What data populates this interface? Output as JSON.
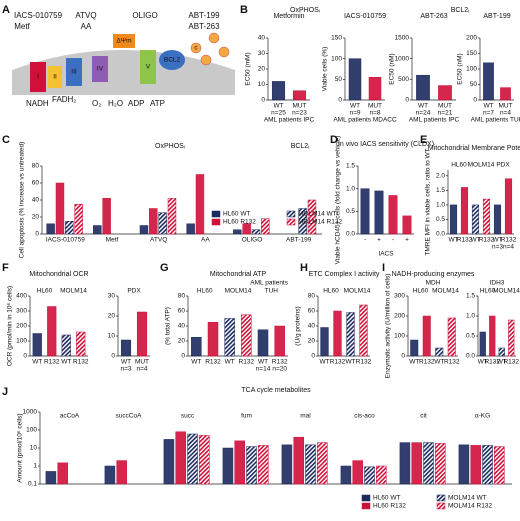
{
  "panels": [
    "A",
    "B",
    "C",
    "D",
    "E",
    "F",
    "G",
    "H",
    "I",
    "J"
  ],
  "headers": [
    "OxPHOSᵢ",
    "BCL2ᵢ",
    "OxPHOSᵢ",
    "BCL2ᵢ"
  ],
  "diagram": {
    "drugs": [
      "IACS-010759",
      "Metf",
      "ATVQ",
      "AA",
      "OLIGO",
      "ABT-199",
      "ABT-263"
    ],
    "complexes": [
      "I",
      "II",
      "III",
      "IV",
      "ΔΨm",
      "V",
      "BCL2"
    ],
    "cyto": "c",
    "substrates": [
      "NADH",
      "FADH₂",
      "O₂",
      "H₂O",
      "ADP",
      "ATP"
    ]
  },
  "chart_data": [
    {
      "type": "bar",
      "title": "Metformin",
      "ylabel": "EC50 (mM)",
      "ylim": [
        0,
        40
      ],
      "yticks": [
        0,
        10,
        20,
        30,
        40
      ],
      "categories": [
        "WT",
        "MUT"
      ],
      "sublabels": [
        "n=25",
        "n=23"
      ],
      "xlabel": "AML patients IPC",
      "values": [
        12,
        6
      ],
      "colors": [
        "#1c2a5e",
        "#d0103a"
      ],
      "hatch": [
        false,
        false
      ]
    },
    {
      "type": "bar",
      "title": "IACS-010759",
      "ylabel": "Viable cells (%)",
      "ylim": [
        0,
        150
      ],
      "yticks": [
        0,
        50,
        100,
        150
      ],
      "categories": [
        "WT",
        "MUT"
      ],
      "sublabels": [
        "n=9",
        "n=8"
      ],
      "xlabel": "AML patients MDACC",
      "values": [
        100,
        55
      ],
      "colors": [
        "#1c2a5e",
        "#d0103a"
      ],
      "hatch": [
        false,
        false
      ]
    },
    {
      "type": "bar",
      "title": "ABT-263",
      "ylabel": "EC50 (nM)",
      "ylim": [
        0,
        1500
      ],
      "yticks": [
        0,
        500,
        1000,
        1500
      ],
      "categories": [
        "WT",
        "MUT"
      ],
      "sublabels": [
        "n=24",
        "n=21"
      ],
      "xlabel": "AML patients IPC",
      "values": [
        600,
        350
      ],
      "colors": [
        "#1c2a5e",
        "#d0103a"
      ],
      "hatch": [
        false,
        false
      ]
    },
    {
      "type": "bar",
      "title": "ABT-199",
      "ylabel": "EC50 (nM)",
      "ylim": [
        0,
        200
      ],
      "yticks": [
        0,
        50,
        100,
        150,
        200
      ],
      "categories": [
        "WT",
        "MUT"
      ],
      "sublabels": [
        "n=7",
        "n=4"
      ],
      "xlabel": "AML patients TUH",
      "values": [
        120,
        40
      ],
      "colors": [
        "#1c2a5e",
        "#d0103a"
      ],
      "hatch": [
        false,
        false
      ]
    },
    {
      "type": "bar",
      "ylabel": "Cell apoptosis (% increase vs untreated)",
      "ylim": [
        0,
        80
      ],
      "yticks": [
        0,
        20,
        40,
        60,
        80
      ],
      "categories": [
        "IACS-010759",
        "Metf",
        "ATVQ",
        "AA",
        "OLIGO",
        "ABT-199"
      ],
      "legend": "lower right",
      "series": [
        {
          "name": "HL60 WT",
          "color": "#1c2a5e",
          "hatch": false,
          "values": [
            12,
            10,
            10,
            12,
            5,
            null
          ]
        },
        {
          "name": "HL60 R132",
          "color": "#d0103a",
          "hatch": false,
          "values": [
            60,
            42,
            30,
            70,
            12,
            null
          ]
        },
        {
          "name": "MOLM14 WT",
          "color": "#1c2a5e",
          "hatch": true,
          "values": [
            15,
            null,
            25,
            null,
            5,
            30
          ]
        },
        {
          "name": "MOLM14 R132",
          "color": "#d0103a",
          "hatch": true,
          "values": [
            35,
            null,
            42,
            null,
            18,
            40
          ]
        }
      ]
    },
    {
      "type": "bar",
      "title": "In vivo IACS sensitivity (CLDX)",
      "ylabel": "Viable hCD45+ cells (fold change vs vehicle)",
      "ylim": [
        0,
        1.5
      ],
      "yticks": [
        {
          "value": 0,
          "label": "0.0"
        },
        0.5,
        {
          "value": 1,
          "label": "1.0"
        },
        1.5
      ],
      "categories": [
        "-",
        "+",
        "-",
        "+"
      ],
      "xlabel": "IACS",
      "values": [
        1.0,
        0.95,
        0.85,
        0.4
      ],
      "colors": [
        "#1c2a5e",
        "#1c2a5e",
        "#d0103a",
        "#d0103a"
      ],
      "hatch": [
        false,
        false,
        false,
        false
      ]
    },
    {
      "type": "bar",
      "title": "Mitochondrial Membrane Potential",
      "ylabel": "TMRE MFI in viable cells, ratio to WT",
      "ylim": [
        0,
        2.2
      ],
      "yticks": [
        {
          "value": 0,
          "label": "0.0"
        },
        0.5,
        {
          "value": 1,
          "label": "1.0"
        },
        1.5,
        {
          "value": 2,
          "label": "2.0"
        }
      ],
      "groups": [
        "HL60",
        "MOLM14",
        "PDX"
      ],
      "categories": [
        "WT",
        "R132",
        "WT",
        "R132",
        "WT",
        "R132"
      ],
      "sublabels": [
        null,
        null,
        null,
        null,
        "n=3",
        "n=4"
      ],
      "values": [
        1.0,
        1.6,
        1.0,
        1.2,
        1.0,
        1.9
      ],
      "colors": [
        "#1c2a5e",
        "#d0103a",
        "#1c2a5e",
        "#d0103a",
        "#1c2a5e",
        "#d0103a"
      ],
      "hatch": [
        false,
        false,
        true,
        true,
        false,
        false
      ]
    },
    {
      "type": "bar",
      "title": "Mitochondrial OCR",
      "ylabel": "OCR (pmol/min in 10⁶ cells)",
      "ylim": [
        0,
        400
      ],
      "yticks": [
        0,
        100,
        200,
        300,
        400
      ],
      "groups": [
        "HL60",
        "MOLM14"
      ],
      "categories": [
        "WT",
        "R132",
        "WT",
        "R132"
      ],
      "values": [
        150,
        330,
        140,
        160
      ],
      "colors": [
        "#1c2a5e",
        "#d0103a",
        "#1c2a5e",
        "#d0103a"
      ],
      "hatch": [
        false,
        false,
        true,
        true
      ]
    },
    {
      "type": "bar",
      "ylim": [
        0,
        30
      ],
      "yticks": [
        0,
        10,
        20,
        30
      ],
      "groups": [
        "PDX"
      ],
      "categories": [
        "WT",
        "MUT"
      ],
      "sublabels": [
        "n=3",
        "n=4"
      ],
      "values": [
        8,
        22
      ],
      "colors": [
        "#1c2a5e",
        "#d0103a"
      ],
      "hatch": [
        false,
        false
      ]
    },
    {
      "type": "bar",
      "title": "Mitochondrial ATP",
      "note": "AML patients",
      "ylabel": "(% total ATP)",
      "ylim": [
        0,
        80
      ],
      "yticks": [
        0,
        20,
        40,
        60,
        80
      ],
      "groups": [
        "HL60",
        "MOLM14",
        "TUH"
      ],
      "categories": [
        "WT",
        "R132",
        "WT",
        "R132",
        "WT",
        "R132"
      ],
      "sublabels": [
        null,
        null,
        null,
        null,
        "n=14",
        "n=20"
      ],
      "values": [
        25,
        45,
        50,
        55,
        35,
        40
      ],
      "colors": [
        "#1c2a5e",
        "#d0103a",
        "#1c2a5e",
        "#d0103a",
        "#1c2a5e",
        "#d0103a"
      ],
      "hatch": [
        false,
        false,
        true,
        true,
        false,
        false
      ]
    },
    {
      "type": "bar",
      "title": "ETC Complex I activity",
      "ylabel": "(U/g proteins)",
      "ylim": [
        0,
        80
      ],
      "yticks": [
        0,
        20,
        40,
        60,
        80
      ],
      "groups": [
        "HL60",
        "MOLM14"
      ],
      "categories": [
        "WT",
        "R132",
        "WT",
        "R132"
      ],
      "values": [
        38,
        60,
        58,
        68
      ],
      "colors": [
        "#1c2a5e",
        "#d0103a",
        "#1c2a5e",
        "#d0103a"
      ],
      "hatch": [
        false,
        false,
        true,
        true
      ]
    },
    {
      "type": "bar",
      "title": "NADH-producing enzymes",
      "subtitle": "MDH",
      "ylabel": "Enzymatic activity (U/million of cells)",
      "ylim": [
        0,
        300
      ],
      "yticks": [
        0,
        100,
        200,
        300
      ],
      "groups": [
        "HL60",
        "MOLM14"
      ],
      "categories": [
        "WT",
        "R132",
        "WT",
        "R132"
      ],
      "values": [
        80,
        200,
        40,
        190
      ],
      "colors": [
        "#1c2a5e",
        "#d0103a",
        "#1c2a5e",
        "#d0103a"
      ],
      "hatch": [
        false,
        false,
        true,
        true
      ]
    },
    {
      "type": "bar",
      "subtitle": "IDH3",
      "ylim": [
        0,
        1.5
      ],
      "yticks": [
        {
          "value": 0,
          "label": "0.0"
        },
        0.5,
        {
          "value": 1,
          "label": "1.0"
        },
        1.5
      ],
      "groups": [
        "HL60",
        "MOLM14"
      ],
      "categories": [
        "WT",
        "R132",
        "WT",
        "R132"
      ],
      "values": [
        0.6,
        1.0,
        0.2,
        0.9
      ],
      "colors": [
        "#1c2a5e",
        "#d0103a",
        "#1c2a5e",
        "#d0103a"
      ],
      "hatch": [
        false,
        false,
        true,
        true
      ]
    },
    {
      "type": "bar",
      "title": "TCA cycle metabolites",
      "ylabel": "Amount (pmol/10⁶ cells)",
      "log": true,
      "ylim": [
        0.1,
        1000
      ],
      "yticks": [
        0.1,
        1,
        10,
        100,
        1000
      ],
      "categories": [
        "acCoA",
        "succCoA",
        "succ",
        "fum",
        "mal",
        "cis-aco",
        "cit",
        "α-KG"
      ],
      "legend": "lower right",
      "series": [
        {
          "name": "HL60 WT",
          "color": "#1c2a5e",
          "hatch": false,
          "values": [
            0.5,
            1.0,
            30,
            10,
            15,
            1.0,
            20,
            15
          ]
        },
        {
          "name": "HL60 R132",
          "color": "#d0103a",
          "hatch": false,
          "values": [
            1.5,
            2.0,
            80,
            25,
            40,
            2.0,
            20,
            14
          ]
        },
        {
          "name": "MOLM14 WT",
          "color": "#1c2a5e",
          "hatch": true,
          "values": [
            null,
            null,
            60,
            12,
            15,
            0.9,
            20,
            14
          ]
        },
        {
          "name": "MOLM14 R132",
          "color": "#d0103a",
          "hatch": true,
          "values": [
            null,
            null,
            50,
            14,
            20,
            1.0,
            18,
            12
          ]
        }
      ]
    }
  ]
}
